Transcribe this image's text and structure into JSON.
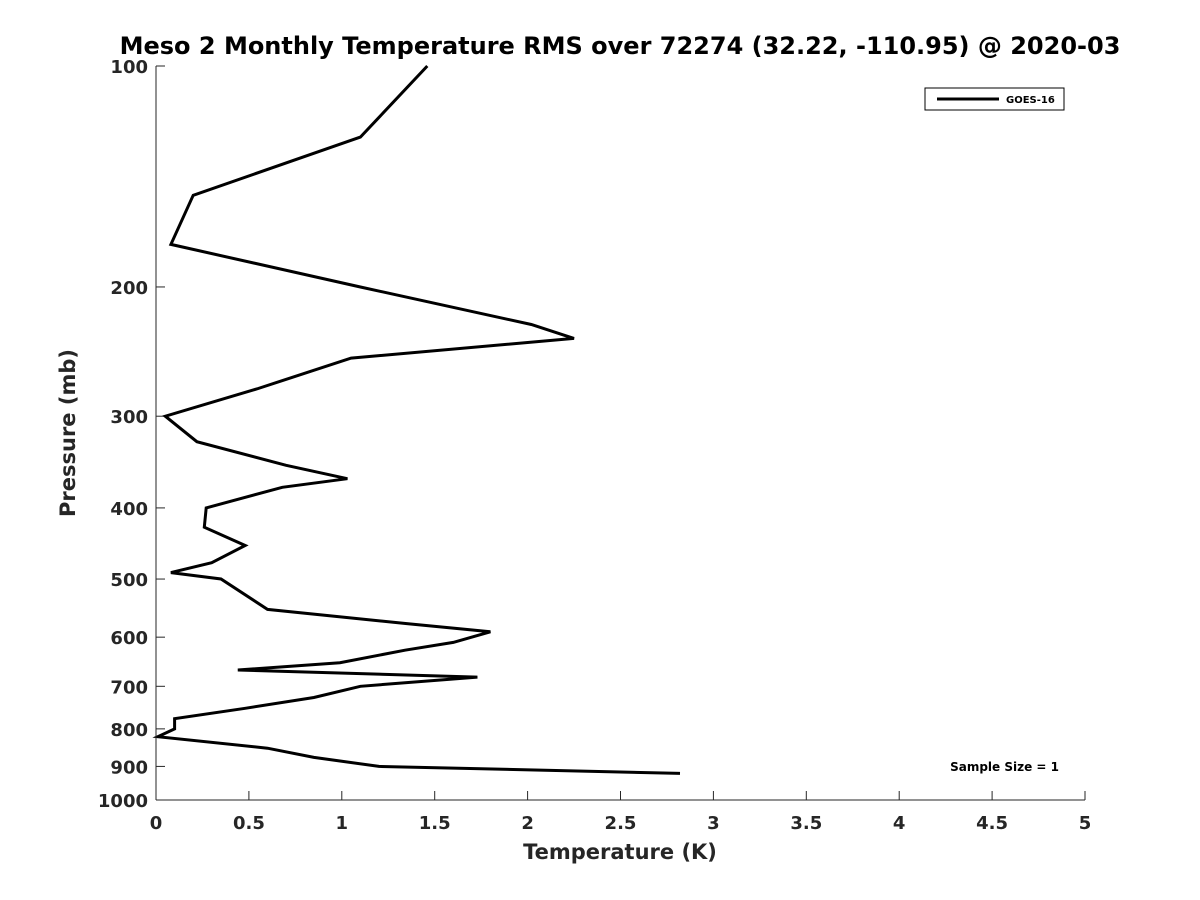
{
  "chart_data": {
    "type": "line",
    "title": "Meso 2 Monthly Temperature RMS over 72274 (32.22, -110.95) @ 2020-03",
    "xlabel": "Temperature (K)",
    "ylabel": "Pressure (mb)",
    "xlim": [
      0,
      5
    ],
    "ylim": [
      100,
      1000
    ],
    "y_scale": "log",
    "y_reversed": true,
    "x_ticks": [
      0,
      0.5,
      1,
      1.5,
      2,
      2.5,
      3,
      3.5,
      4,
      4.5,
      5
    ],
    "x_tick_labels": [
      "0",
      "0.5",
      "1",
      "1.5",
      "2",
      "2.5",
      "3",
      "3.5",
      "4",
      "4.5",
      "5"
    ],
    "y_ticks": [
      100,
      200,
      300,
      400,
      500,
      600,
      700,
      800,
      900,
      1000
    ],
    "y_tick_labels": [
      "100",
      "200",
      "300",
      "400",
      "500",
      "600",
      "700",
      "800",
      "900",
      "1000"
    ],
    "grid": false,
    "legend_position": "top-right",
    "annotation": "Sample Size = 1",
    "series": [
      {
        "name": "GOES-16",
        "color": "#000000",
        "points": [
          [
            1.46,
            100
          ],
          [
            1.1,
            125
          ],
          [
            0.2,
            150
          ],
          [
            0.08,
            175
          ],
          [
            1.1,
            200
          ],
          [
            2.02,
            225
          ],
          [
            2.25,
            235
          ],
          [
            1.05,
            250
          ],
          [
            0.55,
            275
          ],
          [
            0.05,
            300
          ],
          [
            0.22,
            325
          ],
          [
            0.7,
            350
          ],
          [
            1.03,
            365
          ],
          [
            0.68,
            375
          ],
          [
            0.27,
            400
          ],
          [
            0.26,
            425
          ],
          [
            0.48,
            450
          ],
          [
            0.3,
            475
          ],
          [
            0.08,
            490
          ],
          [
            0.35,
            500
          ],
          [
            0.6,
            550
          ],
          [
            1.35,
            575
          ],
          [
            1.8,
            590
          ],
          [
            1.6,
            610
          ],
          [
            1.34,
            625
          ],
          [
            0.99,
            650
          ],
          [
            0.44,
            665
          ],
          [
            1.73,
            680
          ],
          [
            1.1,
            700
          ],
          [
            0.85,
            725
          ],
          [
            0.48,
            750
          ],
          [
            0.1,
            775
          ],
          [
            0.1,
            800
          ],
          [
            0.01,
            820
          ],
          [
            0.6,
            850
          ],
          [
            0.85,
            875
          ],
          [
            1.2,
            900
          ],
          [
            2.82,
            920
          ]
        ]
      }
    ]
  }
}
